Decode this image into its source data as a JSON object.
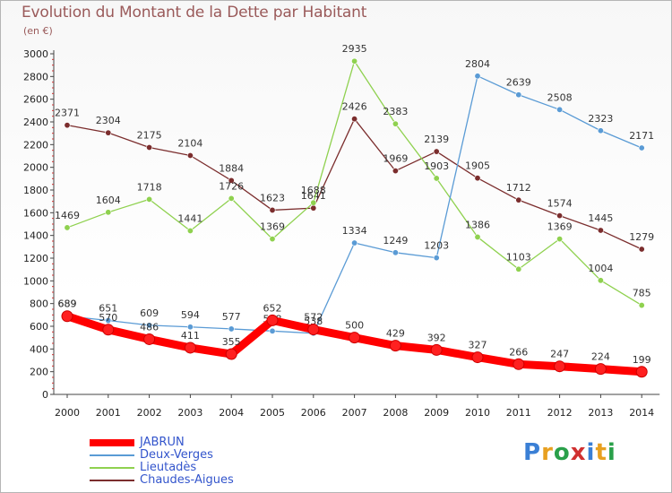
{
  "chart_data": {
    "type": "line",
    "title": "Evolution du Montant de la Dette par Habitant",
    "subtitle": "(en €)",
    "x": [
      "2000",
      "2001",
      "2002",
      "2003",
      "2004",
      "2005",
      "2006",
      "2007",
      "2008",
      "2009",
      "2010",
      "2011",
      "2012",
      "2013",
      "2014"
    ],
    "ylim": [
      0,
      3000
    ],
    "yticks": [
      0,
      200,
      400,
      600,
      800,
      1000,
      1200,
      1400,
      1600,
      1800,
      2000,
      2200,
      2400,
      2600,
      2800,
      3000
    ],
    "grid": false,
    "legend": "bottom-left",
    "series": [
      {
        "name": "JABRUN",
        "color": "#ff0000",
        "values": [
          689,
          570,
          486,
          411,
          355,
          652,
          572,
          500,
          429,
          392,
          327,
          266,
          247,
          224,
          199
        ]
      },
      {
        "name": "Deux-Verges",
        "color": "#5a9bd5",
        "values": [
          689,
          651,
          609,
          594,
          577,
          558,
          538,
          1334,
          1249,
          1203,
          2804,
          2639,
          2508,
          2323,
          2171
        ]
      },
      {
        "name": "Lieutadès",
        "color": "#8fd14f",
        "values": [
          1469,
          1604,
          1718,
          1441,
          1726,
          1369,
          1688,
          2935,
          2383,
          1903,
          1386,
          1103,
          1369,
          1004,
          785
        ]
      },
      {
        "name": "Chaudes-Aigues",
        "color": "#7b2d2d",
        "values": [
          2371,
          2304,
          2175,
          2104,
          1884,
          1623,
          1641,
          2426,
          1969,
          2139,
          1905,
          1712,
          1574,
          1445,
          1279
        ]
      }
    ]
  },
  "logo": {
    "text": "Proxiti"
  }
}
